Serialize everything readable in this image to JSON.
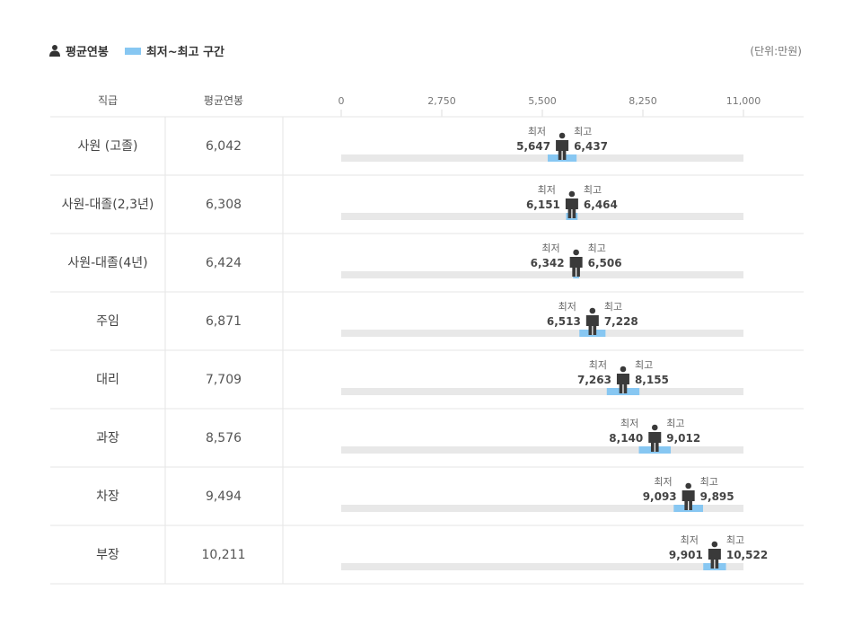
{
  "legend": {
    "avg_label": "평균연봉",
    "range_label": "최저~최고 구간"
  },
  "unit": "(단위:만원)",
  "table_header": {
    "position": "직급",
    "avg": "평균연봉"
  },
  "captions": {
    "min": "최저",
    "max": "최고"
  },
  "colors": {
    "range": "#87c7f2",
    "track": "#e8e8e8",
    "person": "#3a3a3a"
  },
  "chart_data": {
    "type": "bar",
    "xlim": [
      0,
      11000
    ],
    "ticks": [
      0,
      2750,
      5500,
      8250,
      11000
    ],
    "tick_labels": [
      "0",
      "2,750",
      "5,500",
      "8,250",
      "11,000"
    ],
    "rows": [
      {
        "label": "사원 (고졸)",
        "avg": 6042,
        "avg_label": "6,042",
        "min": 5647,
        "min_label": "5,647",
        "max": 6437,
        "max_label": "6,437"
      },
      {
        "label": "사원-대졸(2,3년)",
        "avg": 6308,
        "avg_label": "6,308",
        "min": 6151,
        "min_label": "6,151",
        "max": 6464,
        "max_label": "6,464"
      },
      {
        "label": "사원-대졸(4년)",
        "avg": 6424,
        "avg_label": "6,424",
        "min": 6342,
        "min_label": "6,342",
        "max": 6506,
        "max_label": "6,506"
      },
      {
        "label": "주임",
        "avg": 6871,
        "avg_label": "6,871",
        "min": 6513,
        "min_label": "6,513",
        "max": 7228,
        "max_label": "7,228"
      },
      {
        "label": "대리",
        "avg": 7709,
        "avg_label": "7,709",
        "min": 7263,
        "min_label": "7,263",
        "max": 8155,
        "max_label": "8,155"
      },
      {
        "label": "과장",
        "avg": 8576,
        "avg_label": "8,576",
        "min": 8140,
        "min_label": "8,140",
        "max": 9012,
        "max_label": "9,012"
      },
      {
        "label": "차장",
        "avg": 9494,
        "avg_label": "9,494",
        "min": 9093,
        "min_label": "9,093",
        "max": 9895,
        "max_label": "9,895"
      },
      {
        "label": "부장",
        "avg": 10211,
        "avg_label": "10,211",
        "min": 9901,
        "min_label": "9,901",
        "max": 10522,
        "max_label": "10,522"
      }
    ]
  }
}
